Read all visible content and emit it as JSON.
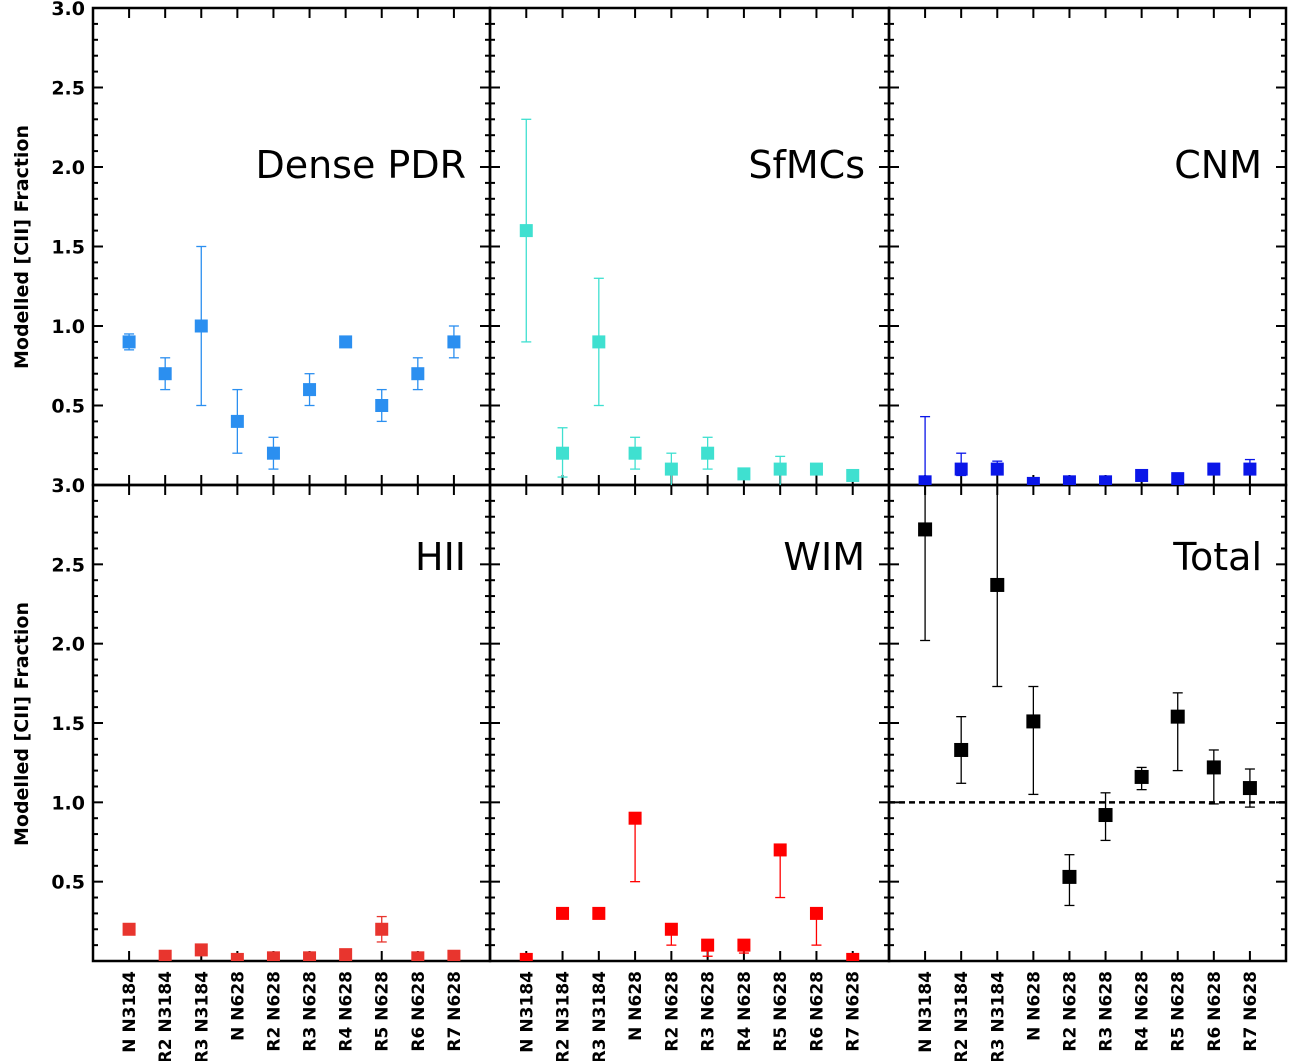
{
  "chart_data": {
    "type": "scatter",
    "ylabel": "Modelled [CII] Fraction",
    "categories": [
      "N N3184",
      "R2 N3184",
      "R3 N3184",
      "N N628",
      "R2 N628",
      "R3 N628",
      "R4 N628",
      "R5 N628",
      "R6 N628",
      "R7 N628"
    ],
    "y_ticks": [
      "0.5",
      "1.0",
      "1.5",
      "2.0",
      "2.5",
      "3.0"
    ],
    "ylim": [
      0,
      3.0
    ],
    "panels": [
      {
        "title": "Dense PDR",
        "color": "#2b8ff0",
        "values": [
          0.9,
          0.7,
          1.0,
          0.4,
          0.2,
          0.6,
          0.9,
          0.5,
          0.7,
          0.9
        ],
        "err_low": [
          0.85,
          0.6,
          0.5,
          0.2,
          0.1,
          0.5,
          0.9,
          0.4,
          0.6,
          0.8
        ],
        "err_high": [
          0.95,
          0.8,
          1.5,
          0.6,
          0.3,
          0.7,
          0.9,
          0.6,
          0.8,
          1.0
        ]
      },
      {
        "title": "SfMCs",
        "color": "#3fe0d0",
        "values": [
          1.6,
          0.2,
          0.9,
          0.2,
          0.1,
          0.2,
          0.07,
          0.1,
          0.1,
          0.06
        ],
        "err_low": [
          0.9,
          0.05,
          0.5,
          0.1,
          0.0,
          0.1,
          0.07,
          0.0,
          0.1,
          0.06
        ],
        "err_high": [
          2.3,
          0.36,
          1.3,
          0.3,
          0.2,
          0.3,
          0.07,
          0.18,
          0.1,
          0.06
        ]
      },
      {
        "title": "CNM",
        "color": "#0a16e8",
        "values": [
          0.02,
          0.1,
          0.1,
          0.01,
          0.02,
          0.02,
          0.06,
          0.04,
          0.1,
          0.1
        ],
        "err_low": [
          0.0,
          0.06,
          0.07,
          0.01,
          0.02,
          0.02,
          0.06,
          0.04,
          0.1,
          0.08
        ],
        "err_high": [
          0.43,
          0.2,
          0.15,
          0.04,
          0.04,
          0.04,
          0.06,
          0.04,
          0.1,
          0.16
        ]
      },
      {
        "title": "HII",
        "color": "#e8352e",
        "values": [
          0.2,
          0.03,
          0.07,
          0.01,
          0.02,
          0.02,
          0.04,
          0.2,
          0.02,
          0.03
        ],
        "err_low": [
          0.2,
          0.03,
          0.07,
          0.01,
          0.02,
          0.02,
          0.04,
          0.12,
          0.02,
          0.03
        ],
        "err_high": [
          0.2,
          0.03,
          0.07,
          0.04,
          0.02,
          0.04,
          0.04,
          0.28,
          0.02,
          0.03
        ]
      },
      {
        "title": "WIM",
        "color": "#ff0000",
        "values": [
          0.01,
          0.3,
          0.3,
          0.9,
          0.2,
          0.1,
          0.1,
          0.7,
          0.3,
          0.01
        ],
        "err_low": [
          0.0,
          0.3,
          0.3,
          0.5,
          0.1,
          0.03,
          0.05,
          0.4,
          0.1,
          0.0
        ],
        "err_high": [
          0.04,
          0.3,
          0.3,
          0.9,
          0.2,
          0.1,
          0.1,
          0.7,
          0.3,
          0.04
        ]
      },
      {
        "title": "Total",
        "color": "#000000",
        "values": [
          2.72,
          1.33,
          2.37,
          1.51,
          0.53,
          0.92,
          1.16,
          1.54,
          1.22,
          1.09
        ],
        "err_low": [
          2.02,
          1.12,
          1.73,
          1.05,
          0.35,
          0.76,
          1.08,
          1.2,
          0.99,
          0.97
        ],
        "err_high": [
          3.0,
          1.54,
          3.0,
          1.73,
          0.67,
          1.06,
          1.22,
          1.69,
          1.33,
          1.21
        ],
        "reference_line": 1.0
      }
    ]
  }
}
